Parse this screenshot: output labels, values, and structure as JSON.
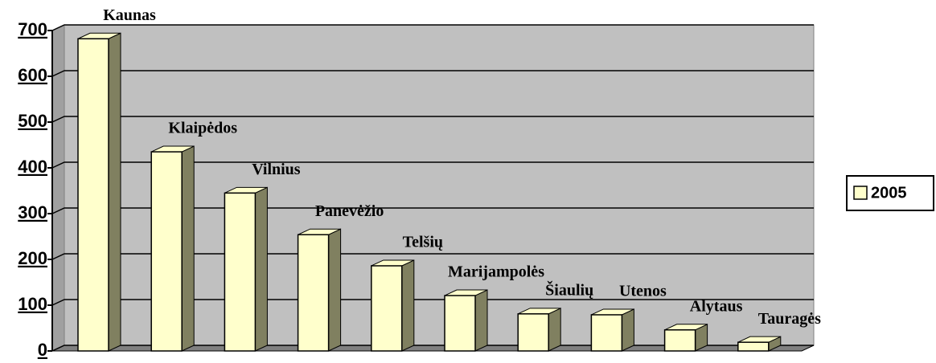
{
  "chart_data": {
    "type": "bar3d",
    "categories": [
      "Kaunas",
      "Klaipėdos",
      "Vilnius",
      "Panevėžio",
      "Telšių",
      "Marijampolės",
      "Šiaulių",
      "Utenos",
      "Alytaus",
      "Tauragės"
    ],
    "series": [
      {
        "name": "2005",
        "color": "#ffffcc",
        "values": [
          682,
          435,
          345,
          254,
          186,
          121,
          81,
          79,
          46,
          19
        ]
      }
    ],
    "ylim": [
      0,
      700
    ],
    "yticks": [
      0,
      100,
      200,
      300,
      400,
      500,
      600,
      700
    ],
    "grid": true,
    "legend": "right"
  }
}
